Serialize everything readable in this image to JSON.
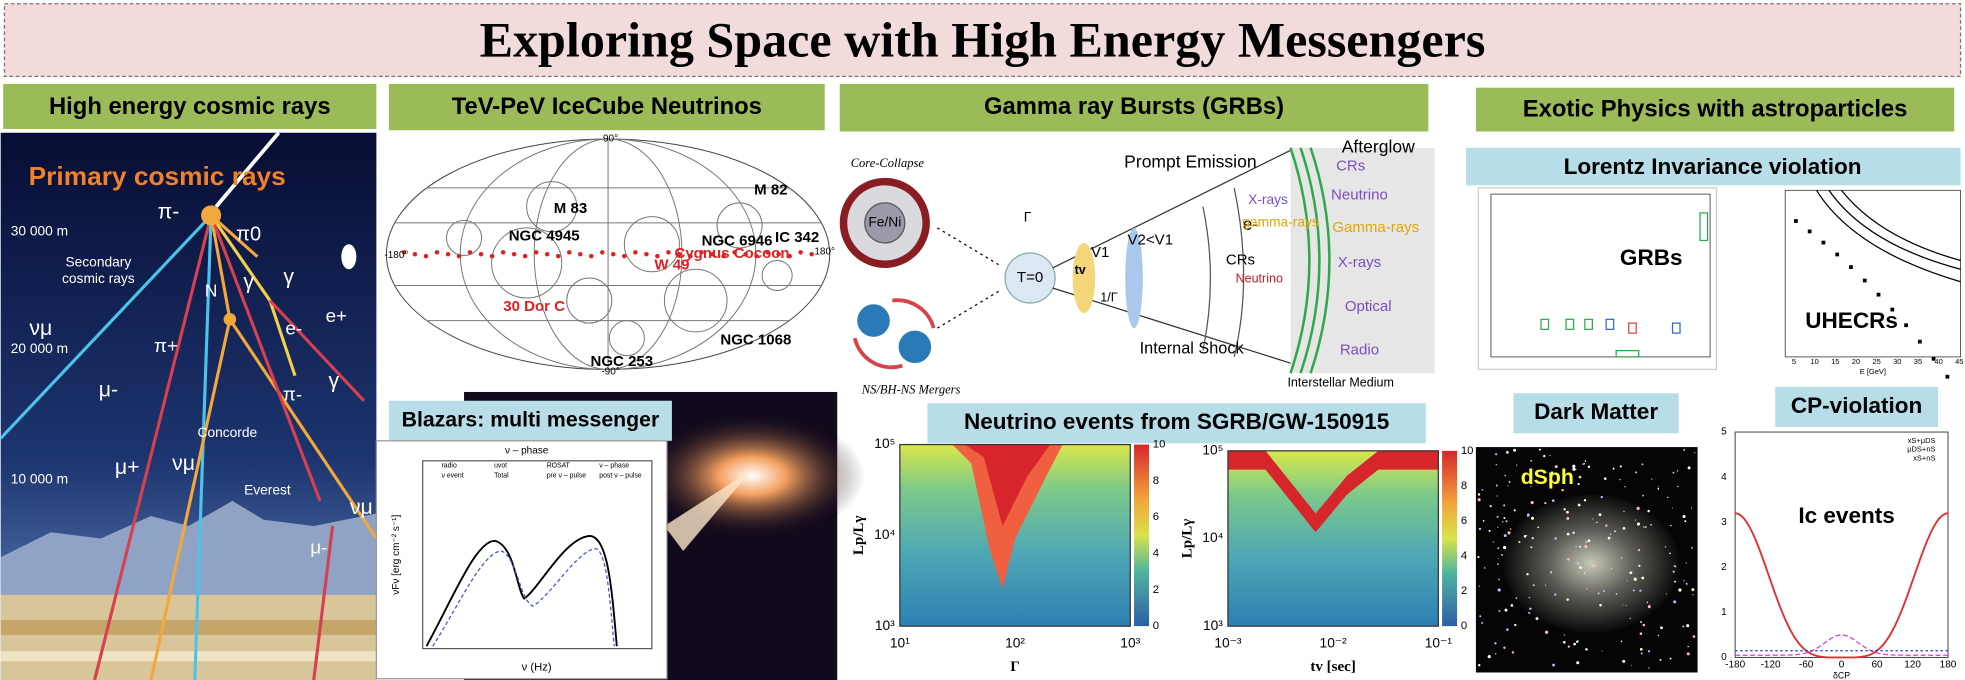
{
  "title": "Exploring Space with High Energy Messengers",
  "cosmic_rays": {
    "header": "High energy cosmic rays",
    "subtitle": "Primary cosmic rays",
    "altitudes": [
      "30 000 m",
      "20 000 m",
      "10 000 m"
    ],
    "labels": [
      "Secondary",
      "cosmic rays",
      "π-",
      "π0",
      "N",
      "γ",
      "γ",
      "e-",
      "e+",
      "γ",
      "νμ",
      "π+",
      "μ-",
      "π-",
      "μ+",
      "νμ",
      "μ-",
      "νμ",
      "Concorde",
      "Everest"
    ]
  },
  "icecube": {
    "header": "TeV-PeV IceCube Neutrinos",
    "labels": [
      "90°",
      "M 83",
      "M 82",
      "NGC 4945",
      "NGC 6946",
      "IC 342",
      "-180°",
      "180°",
      "Cygnus Cocoon",
      "W 49",
      "30 Dor C",
      "NGC 1068",
      "NGC 253",
      "-90°"
    ]
  },
  "blazars": {
    "header": "Blazars: multi messenger",
    "plot_title": "ν – phase",
    "x_label": "ν (Hz)",
    "y_label": "νFν [erg cm⁻² s⁻¹]",
    "legend": [
      "radio",
      "uvot",
      "ROSAT",
      "ν – phase",
      "ν event",
      "Total",
      "pre ν – pulse",
      "post ν – pulse"
    ]
  },
  "grb": {
    "header": "Gamma ray Bursts (GRBs)",
    "labels": [
      "Core-Collapse",
      "Fe/Ni",
      "NS/BH-NS Mergers",
      "Γ",
      "T=0",
      "tv",
      "V1",
      "V2<V1",
      "1/Γ",
      "Prompt Emission",
      "Internal Shock",
      "Interstellar Medium",
      "e-",
      "X-rays",
      "gamma-rays",
      "CRs",
      "Neutrino",
      "Afterglow",
      "CRs",
      "Neutrino",
      "Gamma-rays",
      "X-rays",
      "Optical",
      "Radio"
    ]
  },
  "neutrino_events": {
    "header": "Neutrino events from SGRB/GW-150915",
    "plots": [
      {
        "x_label": "Γ",
        "y_label": "Lp/Lγ",
        "xticks": [
          "10¹",
          "10²",
          "10³"
        ],
        "yticks": [
          "10³",
          "10⁴",
          "10⁵"
        ],
        "cticks": [
          "0",
          "2",
          "4",
          "6",
          "8",
          "10"
        ]
      },
      {
        "x_label": "tv [sec]",
        "y_label": "Lp/Lγ",
        "xticks": [
          "10⁻³",
          "10⁻²",
          "10⁻¹"
        ],
        "yticks": [
          "10³",
          "10⁴",
          "10⁵"
        ],
        "cticks": [
          "0",
          "2",
          "4",
          "6",
          "8",
          "10"
        ]
      }
    ]
  },
  "exotic": {
    "header": "Exotic Physics with astroparticles",
    "lorentz_header": "Lorentz Invariance violation",
    "grbs_label": "GRBs",
    "uhecrs_label": "UHECRs",
    "dark_matter_header": "Dark Matter",
    "dsph_label": "dSph",
    "cp_header": "CP-violation",
    "ic_label": "Ic events",
    "cp_xticks": [
      "-180",
      "-120",
      "-60",
      "0",
      "60",
      "120",
      "180"
    ],
    "cp_yticks": [
      "0",
      "1",
      "2",
      "3",
      "4",
      "5"
    ],
    "cp_x_label": "δCP",
    "cp_legend": [
      "xS+μDS",
      "μDS+nS",
      "xS+nS"
    ],
    "uhecr_xticks": [
      "5",
      "10",
      "15",
      "20",
      "25",
      "30",
      "35",
      "40",
      "45"
    ],
    "uhecr_x_label": "E [GeV]"
  }
}
